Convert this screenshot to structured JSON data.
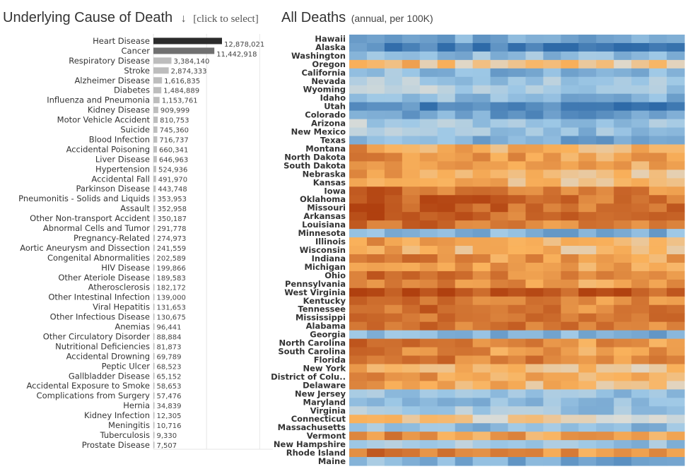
{
  "left_panel": {
    "title": "Underlying Cause of Death",
    "arrow": "↓",
    "hint": "[click to select]"
  },
  "right_panel": {
    "title": "All Deaths",
    "subtitle": "(annual, per 100K)"
  },
  "colors": {
    "bar_selected": "#2b2b2b",
    "bar_hover": "#707070",
    "bar_default": "#bdbdbd",
    "gridline": "#e6e6e6",
    "heat_low": "#2e6aa8",
    "heat_mid": "#dcdcd6",
    "heat_high": "#b0400f"
  },
  "chart_data": [
    {
      "type": "bar",
      "orientation": "horizontal",
      "title": "Underlying Cause of Death",
      "categories": [
        "Heart Disease",
        "Cancer",
        "Respiratory Disease",
        "Stroke",
        "Alzheimer Disease",
        "Diabetes",
        "Influenza and Pneumonia",
        "Kidney Disease",
        "Motor Vehicle Accident",
        "Suicide",
        "Blood Infection",
        "Accidental Poisoning",
        "Liver Disease",
        "Hypertension",
        "Accidental Fall",
        "Parkinson Disease",
        "Pneumonitis - Solids and Liquids",
        "Assault",
        "Other Non-transport Accident",
        "Abnormal Cells and Tumor",
        "Pregnancy-Related",
        "Aortic Aneurysm and Dissection",
        "Congenital Abnormalities",
        "HIV Disease",
        "Other Ateriole Disease",
        "Atherosclerosis",
        "Other Intestinal Infection",
        "Viral Hepatitis",
        "Other Infectious Disease",
        "Anemias",
        "Other Circulatory Disorder",
        "Nutritional Deficiencies",
        "Accidental Drowning",
        "Peptic Ulcer",
        "Gallbladder Disease",
        "Accidental Exposure to Smoke",
        "Complications from Surgery",
        "Hernia",
        "Kidney Infection",
        "Meningitis",
        "Tuberculosis",
        "Prostate Disease"
      ],
      "values": [
        12878021,
        11442918,
        3384140,
        2874333,
        1616835,
        1484889,
        1153761,
        909999,
        810753,
        745360,
        716737,
        660341,
        646963,
        524936,
        491970,
        443748,
        353953,
        352958,
        350187,
        291778,
        274973,
        241559,
        202589,
        199866,
        189583,
        182172,
        139000,
        131653,
        130675,
        96441,
        88884,
        81873,
        69789,
        68523,
        65152,
        58653,
        57476,
        34839,
        12305,
        10716,
        9330,
        7507
      ],
      "value_labels": [
        "12,878,021",
        "11,442,918",
        "3,384,140",
        "2,874,333",
        "1,616,835",
        "1,484,889",
        "1,153,761",
        "909,999",
        "810,753",
        "745,360",
        "716,737",
        "660,341",
        "646,963",
        "524,936",
        "491,970",
        "443,748",
        "353,953",
        "352,958",
        "350,187",
        "291,778",
        "274,973",
        "241,559",
        "202,589",
        "199,866",
        "189,583",
        "182,172",
        "139,000",
        "131,653",
        "130,675",
        "96,441",
        "88,884",
        "81,873",
        "69,789",
        "68,523",
        "65,152",
        "58,653",
        "57,476",
        "34,839",
        "12,305",
        "10,716",
        "9,330",
        "7,507"
      ],
      "selected": "Heart Disease",
      "hovered": "Cancer",
      "grid": true
    },
    {
      "type": "heatmap",
      "title": "All Deaths",
      "subtitle": "(annual, per 100K)",
      "rows": [
        "Hawaii",
        "Alaska",
        "Washington",
        "Oregon",
        "California",
        "Nevada",
        "Wyoming",
        "Idaho",
        "Utah",
        "Colorado",
        "Arizona",
        "New Mexico",
        "Texas",
        "Montana",
        "North Dakota",
        "South Dakota",
        "Nebraska",
        "Kansas",
        "Iowa",
        "Oklahoma",
        "Missouri",
        "Arkansas",
        "Louisiana",
        "Minnesota",
        "Illinois",
        "Wisconsin",
        "Indiana",
        "Michigan",
        "Ohio",
        "Pennsylvania",
        "West Virginia",
        "Kentucky",
        "Tennessee",
        "Mississippi",
        "Alabama",
        "Georgia",
        "North Carolina",
        "South Carolina",
        "Florida",
        "New York",
        "District of Colu..",
        "Delaware",
        "New Jersey",
        "Maryland",
        "Virginia",
        "Connecticut",
        "Massachusetts",
        "Vermont",
        "New Hampshire",
        "Rhode Island",
        "Maine"
      ],
      "columns": 19,
      "color_scale": "diverging blue (low) to orange (high)",
      "row_levels": [
        -0.55,
        -0.85,
        -0.4,
        0.25,
        -0.45,
        -0.3,
        -0.25,
        -0.4,
        -0.8,
        -0.6,
        -0.3,
        -0.35,
        -0.5,
        0.4,
        0.5,
        0.45,
        0.35,
        0.35,
        0.7,
        0.8,
        0.8,
        0.8,
        0.7,
        -0.45,
        0.4,
        0.35,
        0.55,
        0.5,
        0.65,
        0.55,
        0.95,
        0.65,
        0.7,
        0.75,
        0.7,
        -0.45,
        0.6,
        0.55,
        0.65,
        0.3,
        0.5,
        0.35,
        -0.35,
        -0.4,
        -0.3,
        0.15,
        -0.4,
        0.5,
        -0.3,
        0.6,
        -0.5
      ],
      "trend": [
        0.08,
        0.06,
        0.04,
        0.04,
        0.02,
        0.0,
        -0.02,
        -0.02,
        -0.04,
        -0.04,
        -0.05,
        -0.06,
        -0.06,
        -0.07,
        -0.06,
        -0.07,
        -0.08,
        -0.08,
        -0.08
      ]
    }
  ]
}
